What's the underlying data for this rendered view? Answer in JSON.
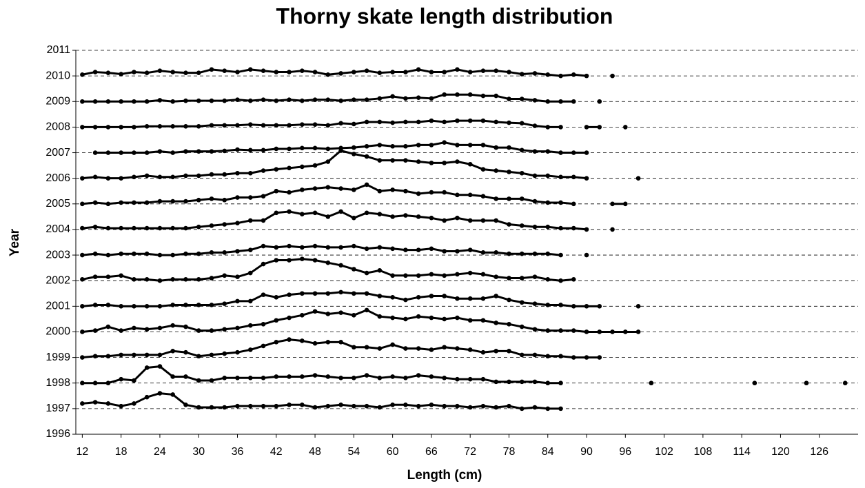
{
  "chart_data": {
    "type": "line",
    "title": "Thorny skate length distribution",
    "x_label": "Length (cm)",
    "y_label": "Year",
    "x": [
      12,
      14,
      16,
      18,
      20,
      22,
      24,
      26,
      28,
      30,
      32,
      34,
      36,
      38,
      40,
      42,
      44,
      46,
      48,
      50,
      52,
      54,
      56,
      58,
      60,
      62,
      64,
      66,
      68,
      70,
      72,
      74,
      76,
      78,
      80,
      82,
      84,
      86,
      88,
      90,
      92,
      94,
      96,
      98,
      100,
      102,
      104,
      106,
      108,
      110,
      112,
      114,
      116,
      118,
      120,
      122,
      124,
      126,
      128,
      130
    ],
    "xlim": [
      11,
      132
    ],
    "ylim": [
      1996,
      2011
    ],
    "xticks": [
      12,
      18,
      24,
      30,
      36,
      42,
      48,
      54,
      60,
      66,
      72,
      78,
      84,
      90,
      96,
      102,
      108,
      114,
      120,
      126
    ],
    "yticks": [
      1996,
      1997,
      1998,
      1999,
      2000,
      2001,
      2002,
      2003,
      2004,
      2005,
      2006,
      2007,
      2008,
      2009,
      2010,
      2011
    ],
    "grid": true,
    "grid_style": "dashed",
    "series": [
      {
        "color": "#000000",
        "values": [
          2010.05,
          2010.15,
          2010.12,
          2010.07,
          2010.15,
          2010.12,
          2010.2,
          2010.15,
          2010.12,
          2010.12,
          2010.25,
          2010.2,
          2010.15,
          2010.25,
          2010.2,
          2010.15,
          2010.15,
          2010.2,
          2010.15,
          2010.05,
          2010.1,
          2010.15,
          2010.2,
          2010.12,
          2010.15,
          2010.15,
          2010.25,
          2010.15,
          2010.15,
          2010.25,
          2010.15,
          2010.2,
          2010.2,
          2010.15,
          2010.07,
          2010.1,
          2010.05,
          2010,
          2010.05,
          2010,
          null,
          2010,
          null,
          null,
          null,
          null,
          null,
          null,
          null,
          null,
          null,
          null,
          null,
          null,
          null,
          null,
          null,
          null,
          null,
          null
        ]
      },
      {
        "color": "#000000",
        "values": [
          2009,
          2009,
          2009,
          2009,
          2009,
          2009,
          2009.05,
          2009,
          2009.03,
          2009.03,
          2009.03,
          2009.03,
          2009.07,
          2009.03,
          2009.07,
          2009.03,
          2009.07,
          2009.03,
          2009.07,
          2009.07,
          2009.03,
          2009.07,
          2009.07,
          2009.12,
          2009.2,
          2009.12,
          2009.15,
          2009.12,
          2009.27,
          2009.27,
          2009.27,
          2009.22,
          2009.22,
          2009.1,
          2009.1,
          2009.05,
          2009,
          2009,
          2009,
          null,
          2009,
          null,
          null,
          null,
          null,
          null,
          null,
          null,
          null,
          null,
          null,
          null,
          null,
          null,
          null,
          null,
          null,
          null,
          null,
          null
        ]
      },
      {
        "color": "#000000",
        "values": [
          2008,
          2008,
          2008,
          2008,
          2008,
          2008.03,
          2008.03,
          2008.03,
          2008.03,
          2008.03,
          2008.07,
          2008.07,
          2008.07,
          2008.1,
          2008.07,
          2008.07,
          2008.07,
          2008.1,
          2008.1,
          2008.07,
          2008.15,
          2008.12,
          2008.2,
          2008.2,
          2008.17,
          2008.2,
          2008.2,
          2008.25,
          2008.2,
          2008.25,
          2008.25,
          2008.25,
          2008.2,
          2008.17,
          2008.15,
          2008.05,
          2008,
          2008,
          null,
          2008,
          2008,
          null,
          2008,
          null,
          null,
          null,
          null,
          null,
          null,
          null,
          null,
          null,
          null,
          null,
          null,
          null,
          null,
          null,
          null,
          null
        ]
      },
      {
        "color": "#000000",
        "values": [
          null,
          2007,
          2007,
          2007,
          2007,
          2007,
          2007.05,
          2007,
          2007.05,
          2007.05,
          2007.05,
          2007.07,
          2007.12,
          2007.1,
          2007.1,
          2007.15,
          2007.15,
          2007.18,
          2007.18,
          2007.15,
          2007.18,
          2007.2,
          2007.25,
          2007.3,
          2007.25,
          2007.25,
          2007.3,
          2007.3,
          2007.4,
          2007.3,
          2007.3,
          2007.3,
          2007.2,
          2007.2,
          2007.1,
          2007.05,
          2007.05,
          2007,
          2007,
          2007,
          null,
          null,
          null,
          null,
          null,
          null,
          null,
          null,
          null,
          null,
          null,
          null,
          null,
          null,
          null,
          null,
          null,
          null,
          null,
          null
        ]
      },
      {
        "color": "#000000",
        "values": [
          2006,
          2006.05,
          2006,
          2006,
          2006.05,
          2006.1,
          2006.05,
          2006.05,
          2006.1,
          2006.1,
          2006.15,
          2006.15,
          2006.2,
          2006.2,
          2006.3,
          2006.35,
          2006.4,
          2006.45,
          2006.5,
          2006.65,
          2007.08,
          2006.95,
          2006.85,
          2006.7,
          2006.7,
          2006.7,
          2006.65,
          2006.6,
          2006.6,
          2006.65,
          2006.55,
          2006.35,
          2006.3,
          2006.25,
          2006.2,
          2006.1,
          2006.1,
          2006.05,
          2006.05,
          2006,
          null,
          null,
          null,
          2006,
          null,
          null,
          null,
          null,
          null,
          null,
          null,
          null,
          null,
          null,
          null,
          null,
          null,
          null,
          null,
          null
        ]
      },
      {
        "color": "#000000",
        "values": [
          2005,
          2005.05,
          2005,
          2005.05,
          2005.05,
          2005.05,
          2005.1,
          2005.1,
          2005.1,
          2005.15,
          2005.2,
          2005.15,
          2005.25,
          2005.25,
          2005.3,
          2005.5,
          2005.45,
          2005.55,
          2005.6,
          2005.65,
          2005.6,
          2005.55,
          2005.75,
          2005.5,
          2005.55,
          2005.5,
          2005.4,
          2005.45,
          2005.45,
          2005.35,
          2005.35,
          2005.3,
          2005.2,
          2005.2,
          2005.2,
          2005.1,
          2005.05,
          2005.05,
          2005,
          null,
          null,
          2005,
          2005,
          null,
          null,
          null,
          null,
          null,
          null,
          null,
          null,
          null,
          null,
          null,
          null,
          null,
          null,
          null,
          null,
          null
        ]
      },
      {
        "color": "#000000",
        "values": [
          2004.05,
          2004.1,
          2004.05,
          2004.05,
          2004.05,
          2004.05,
          2004.05,
          2004.05,
          2004.05,
          2004.1,
          2004.15,
          2004.2,
          2004.25,
          2004.35,
          2004.35,
          2004.65,
          2004.7,
          2004.6,
          2004.65,
          2004.5,
          2004.7,
          2004.45,
          2004.65,
          2004.6,
          2004.5,
          2004.55,
          2004.5,
          2004.45,
          2004.35,
          2004.45,
          2004.35,
          2004.35,
          2004.35,
          2004.2,
          2004.15,
          2004.1,
          2004.1,
          2004.05,
          2004.05,
          2004,
          null,
          2004,
          null,
          null,
          null,
          null,
          null,
          null,
          null,
          null,
          null,
          null,
          null,
          null,
          null,
          null,
          null,
          null,
          null,
          null
        ]
      },
      {
        "color": "#000000",
        "values": [
          2003,
          2003.05,
          2003,
          2003.05,
          2003.05,
          2003.05,
          2003,
          2003,
          2003.05,
          2003.05,
          2003.1,
          2003.1,
          2003.15,
          2003.2,
          2003.35,
          2003.3,
          2003.35,
          2003.3,
          2003.35,
          2003.3,
          2003.3,
          2003.35,
          2003.25,
          2003.3,
          2003.25,
          2003.2,
          2003.2,
          2003.25,
          2003.15,
          2003.15,
          2003.2,
          2003.1,
          2003.1,
          2003.05,
          2003.05,
          2003.05,
          2003.05,
          2003,
          null,
          2003,
          null,
          null,
          null,
          null,
          null,
          null,
          null,
          null,
          null,
          null,
          null,
          null,
          null,
          null,
          null,
          null,
          null,
          null,
          null,
          null
        ]
      },
      {
        "color": "#000000",
        "values": [
          2002.05,
          2002.15,
          2002.15,
          2002.2,
          2002.05,
          2002.05,
          2002,
          2002.05,
          2002.05,
          2002.05,
          2002.1,
          2002.2,
          2002.15,
          2002.3,
          2002.65,
          2002.8,
          2002.8,
          2002.85,
          2002.8,
          2002.7,
          2002.6,
          2002.45,
          2002.3,
          2002.4,
          2002.2,
          2002.2,
          2002.2,
          2002.25,
          2002.2,
          2002.25,
          2002.3,
          2002.25,
          2002.15,
          2002.1,
          2002.1,
          2002.15,
          2002.05,
          2002,
          2002.05,
          null,
          null,
          null,
          null,
          null,
          null,
          null,
          null,
          null,
          null,
          null,
          null,
          null,
          null,
          null,
          null,
          null,
          null,
          null,
          null,
          null
        ]
      },
      {
        "color": "#000000",
        "values": [
          2001,
          2001.05,
          2001.05,
          2001,
          2001,
          2001,
          2001,
          2001.05,
          2001.05,
          2001.05,
          2001.05,
          2001.1,
          2001.2,
          2001.2,
          2001.45,
          2001.35,
          2001.45,
          2001.5,
          2001.5,
          2001.5,
          2001.55,
          2001.5,
          2001.5,
          2001.4,
          2001.35,
          2001.25,
          2001.35,
          2001.4,
          2001.4,
          2001.3,
          2001.3,
          2001.3,
          2001.4,
          2001.25,
          2001.15,
          2001.1,
          2001.05,
          2001.05,
          2001,
          2001,
          2001,
          null,
          null,
          2001,
          null,
          null,
          null,
          null,
          null,
          null,
          null,
          null,
          null,
          null,
          null,
          null,
          null,
          null,
          null,
          null
        ]
      },
      {
        "color": "#000000",
        "values": [
          2000,
          2000.05,
          2000.2,
          2000.05,
          2000.15,
          2000.1,
          2000.15,
          2000.25,
          2000.2,
          2000.05,
          2000.05,
          2000.1,
          2000.15,
          2000.25,
          2000.3,
          2000.45,
          2000.55,
          2000.65,
          2000.8,
          2000.7,
          2000.75,
          2000.65,
          2000.85,
          2000.6,
          2000.55,
          2000.5,
          2000.6,
          2000.55,
          2000.5,
          2000.55,
          2000.45,
          2000.45,
          2000.35,
          2000.3,
          2000.2,
          2000.1,
          2000.05,
          2000.05,
          2000.05,
          2000,
          2000,
          2000,
          2000,
          2000,
          null,
          null,
          null,
          null,
          null,
          null,
          null,
          null,
          null,
          null,
          null,
          null,
          null,
          null,
          null,
          null
        ]
      },
      {
        "color": "#000000",
        "values": [
          1999,
          1999.05,
          1999.05,
          1999.1,
          1999.1,
          1999.1,
          1999.1,
          1999.25,
          1999.2,
          1999.05,
          1999.1,
          1999.15,
          1999.2,
          1999.3,
          1999.45,
          1999.6,
          1999.7,
          1999.65,
          1999.55,
          1999.6,
          1999.6,
          1999.4,
          1999.4,
          1999.35,
          1999.5,
          1999.35,
          1999.35,
          1999.3,
          1999.4,
          1999.35,
          1999.3,
          1999.2,
          1999.25,
          1999.25,
          1999.1,
          1999.1,
          1999.05,
          1999.05,
          1999,
          1999,
          1999,
          null,
          null,
          null,
          null,
          null,
          null,
          null,
          null,
          null,
          null,
          null,
          null,
          null,
          null,
          null,
          null,
          null,
          null,
          null
        ]
      },
      {
        "color": "#000000",
        "values": [
          1998,
          1998,
          1998,
          1998.15,
          1998.1,
          1998.6,
          1998.65,
          1998.25,
          1998.25,
          1998.1,
          1998.1,
          1998.2,
          1998.2,
          1998.2,
          1998.2,
          1998.25,
          1998.25,
          1998.25,
          1998.3,
          1998.25,
          1998.2,
          1998.2,
          1998.3,
          1998.2,
          1998.25,
          1998.2,
          1998.3,
          1998.25,
          1998.2,
          1998.15,
          1998.15,
          1998.15,
          1998.05,
          1998.05,
          1998.05,
          1998.05,
          1998,
          1998,
          null,
          null,
          null,
          null,
          null,
          null,
          1998,
          null,
          null,
          null,
          null,
          null,
          null,
          null,
          1998,
          null,
          null,
          null,
          1998,
          null,
          null,
          1998
        ]
      },
      {
        "color": "#000000",
        "values": [
          1997.2,
          1997.25,
          1997.2,
          1997.1,
          1997.2,
          1997.45,
          1997.6,
          1997.55,
          1997.15,
          1997.05,
          1997.05,
          1997.05,
          1997.1,
          1997.1,
          1997.1,
          1997.1,
          1997.15,
          1997.15,
          1997.05,
          1997.1,
          1997.15,
          1997.1,
          1997.1,
          1997.05,
          1997.15,
          1997.15,
          1997.1,
          1997.15,
          1997.1,
          1997.1,
          1997.05,
          1997.1,
          1997.05,
          1997.1,
          1997,
          1997.05,
          1997,
          1997,
          null,
          null,
          null,
          null,
          null,
          null,
          null,
          null,
          null,
          null,
          null,
          null,
          null,
          null,
          null,
          null,
          null,
          null,
          null,
          null,
          null,
          null
        ]
      }
    ]
  }
}
